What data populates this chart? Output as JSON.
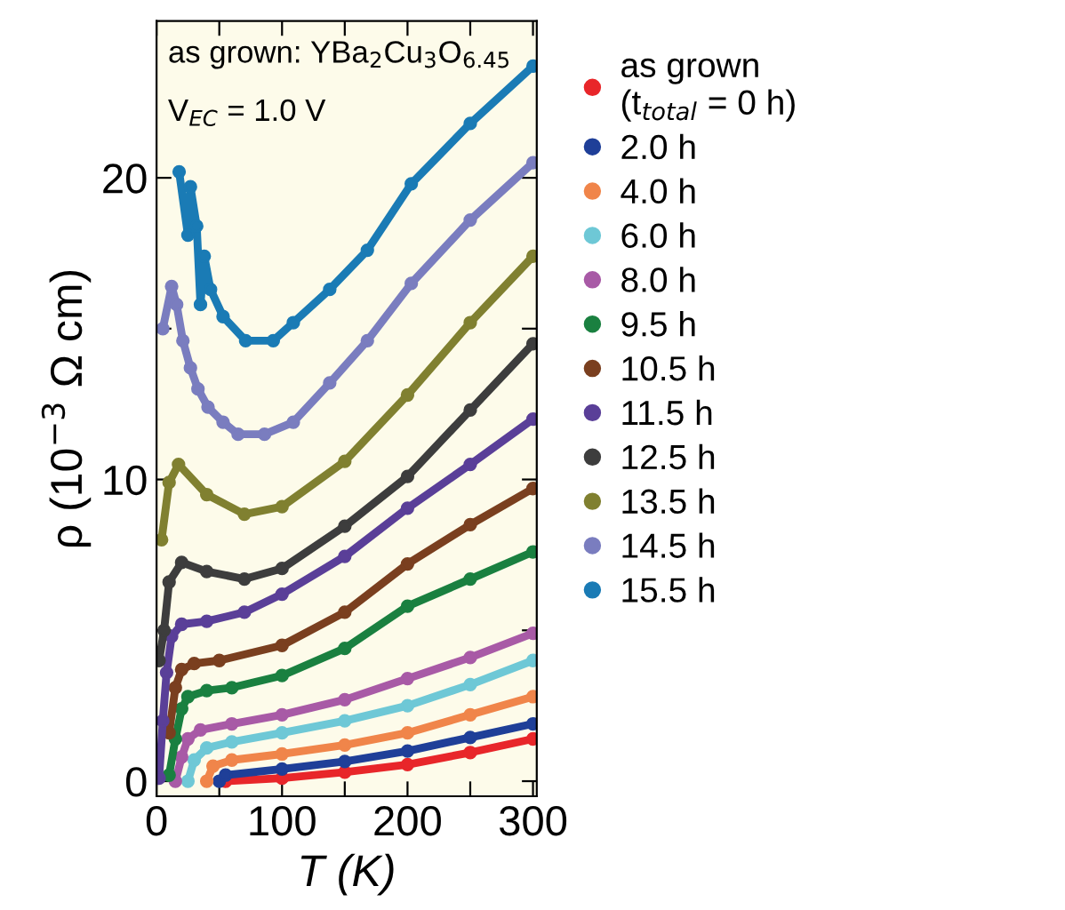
{
  "chart_data": {
    "type": "line",
    "xlabel": "T (K)",
    "ylabel": "ρ (10$^{−3}$ Ω cm)",
    "annotations": [
      "as grown: YBa$_{2}$Cu$_{3}$O$_{6.45}$",
      "V$_{EC}$ = 1.0 V"
    ],
    "xlim": [
      0,
      303
    ],
    "ylim": [
      -0.5,
      25.2
    ],
    "xticks": [
      0,
      {
        "value": 50,
        "label": null
      },
      100,
      {
        "value": 150,
        "label": null
      },
      200,
      {
        "value": 250,
        "label": null
      },
      300
    ],
    "yticks": [
      0,
      {
        "value": 5,
        "label": null
      },
      10,
      {
        "value": 15,
        "label": null
      },
      20
    ],
    "grid": false,
    "legend": "right",
    "marker": "circle",
    "line_style": "solid",
    "series": [
      {
        "name": "as grown\n(t$_{total}$ = 0 h)",
        "color": "#e8262a",
        "x": [
          55,
          100,
          150,
          200,
          250,
          300
        ],
        "values": [
          0,
          0.1,
          0.3,
          0.55,
          0.95,
          1.4
        ]
      },
      {
        "name": "2.0 h",
        "color": "#1f3f98",
        "x": [
          50,
          55,
          100,
          150,
          200,
          250,
          300
        ],
        "values": [
          0,
          0.2,
          0.4,
          0.65,
          1.0,
          1.45,
          1.9
        ]
      },
      {
        "name": "4.0 h",
        "color": "#f0854a",
        "x": [
          40,
          45,
          60,
          100,
          150,
          200,
          250,
          300
        ],
        "values": [
          0,
          0.5,
          0.7,
          0.9,
          1.2,
          1.6,
          2.2,
          2.8
        ]
      },
      {
        "name": "6.0 h",
        "color": "#6ec8d6",
        "x": [
          25,
          30,
          40,
          60,
          100,
          150,
          200,
          250,
          300
        ],
        "values": [
          0,
          0.7,
          1.1,
          1.3,
          1.6,
          2.0,
          2.5,
          3.2,
          4.0
        ]
      },
      {
        "name": "8.0 h",
        "color": "#a85aa6",
        "x": [
          15,
          20,
          25,
          35,
          60,
          100,
          150,
          200,
          250,
          300
        ],
        "values": [
          0,
          0.8,
          1.4,
          1.7,
          1.9,
          2.2,
          2.7,
          3.4,
          4.1,
          4.9
        ]
      },
      {
        "name": "9.5 h",
        "color": "#1a8040",
        "x": [
          10,
          15,
          20,
          25,
          40,
          60,
          100,
          150,
          200,
          250,
          300
        ],
        "values": [
          0.2,
          1.4,
          2.4,
          2.8,
          3.0,
          3.1,
          3.5,
          4.4,
          5.8,
          6.7,
          7.6
        ]
      },
      {
        "name": "10.5 h",
        "color": "#7a3f1f",
        "x": [
          10,
          15,
          20,
          30,
          50,
          100,
          150,
          200,
          250,
          300
        ],
        "values": [
          1.6,
          3.1,
          3.7,
          3.9,
          4.0,
          4.5,
          5.6,
          7.2,
          8.5,
          9.7
        ]
      },
      {
        "name": "11.5 h",
        "color": "#5a3f98",
        "x": [
          2,
          5,
          8,
          12,
          20,
          40,
          70,
          100,
          150,
          200,
          250,
          300
        ],
        "values": [
          0.1,
          2.0,
          3.6,
          4.8,
          5.2,
          5.3,
          5.6,
          6.2,
          7.45,
          9.05,
          10.5,
          12.0
        ]
      },
      {
        "name": "12.5 h",
        "color": "#3d3d3d",
        "x": [
          2,
          6,
          10,
          20,
          40,
          70,
          100,
          150,
          200,
          250,
          300
        ],
        "values": [
          4.0,
          5.0,
          6.6,
          7.25,
          6.95,
          6.7,
          7.05,
          8.45,
          10.1,
          12.3,
          14.5
        ]
      },
      {
        "name": "13.5 h",
        "color": "#808030",
        "x": [
          4,
          10,
          17.5,
          40,
          70,
          100,
          150,
          200,
          250,
          300
        ],
        "values": [
          8.0,
          9.9,
          10.5,
          9.5,
          8.85,
          9.1,
          10.6,
          12.8,
          15.2,
          17.4
        ]
      },
      {
        "name": "14.5 h",
        "color": "#7a7dbf",
        "x": [
          5,
          12,
          16,
          21,
          27,
          33,
          41,
          53,
          65,
          86,
          109,
          138,
          168,
          203,
          250,
          300
        ],
        "values": [
          15.0,
          16.4,
          15.8,
          14.6,
          13.7,
          13.0,
          12.4,
          11.9,
          11.5,
          11.5,
          11.9,
          13.2,
          14.6,
          16.5,
          18.6,
          20.5
        ]
      },
      {
        "name": "15.5 h",
        "color": "#1a7bb5",
        "x": [
          18,
          25,
          27,
          32,
          35,
          38,
          43,
          53,
          71,
          93,
          109,
          138,
          168,
          203,
          250,
          300
        ],
        "values": [
          20.2,
          18.1,
          19.7,
          18.4,
          15.8,
          17.4,
          16.3,
          15.4,
          14.6,
          14.6,
          15.2,
          16.3,
          17.6,
          19.8,
          21.8,
          23.7
        ]
      }
    ]
  }
}
